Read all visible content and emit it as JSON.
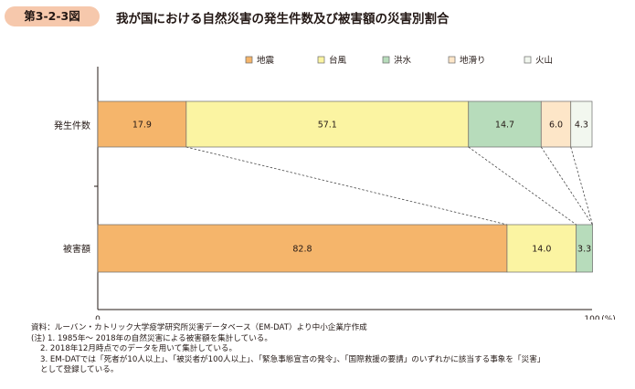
{
  "figure": {
    "number": "第3-2-3図",
    "title": "我が国における自然災害の発生件数及び被害額の災害別割合"
  },
  "chart_data": {
    "type": "bar",
    "orientation": "horizontal",
    "stacked": true,
    "categories": [
      "発生件数",
      "被害額"
    ],
    "series": [
      {
        "name": "地震",
        "color": "#f5b56b",
        "values": [
          17.9,
          82.8
        ],
        "labels": [
          "17.9",
          "82.8"
        ]
      },
      {
        "name": "台風",
        "color": "#fbf4a2",
        "values": [
          57.1,
          14.0
        ],
        "labels": [
          "57.1",
          "14.0"
        ]
      },
      {
        "name": "洪水",
        "color": "#b7dcbb",
        "values": [
          14.7,
          3.3
        ],
        "labels": [
          "14.7",
          "3.3"
        ]
      },
      {
        "name": "地滑り",
        "color": "#fde6c8",
        "values": [
          6.0,
          0.0
        ],
        "labels": [
          "6.0",
          ""
        ]
      },
      {
        "name": "火山",
        "color": "#f2f7ef",
        "values": [
          4.3,
          0.0
        ],
        "labels": [
          "4.3",
          ""
        ]
      }
    ],
    "xlim": [
      0,
      100
    ],
    "x_ticks": [
      "0",
      "100"
    ],
    "x_unit": "(%)",
    "legend_position": "top-right",
    "connector_lines": "dashed"
  },
  "notes": {
    "source": "資料：ルーバン・カトリック大学疫学研究所災害データベース（EM-DAT）より中小企業庁作成",
    "note1": "(注) 1. 1985年～ 2018年の自然災害による被害額を集計している。",
    "note2": "2. 2018年12月時点でのデータを用いて集計している。",
    "note3a": "3. EM-DATでは「死者が10人以上」、「被災者が100人以上」、「緊急事態宣言の発令」、「国際救援の要請」のいずれかに該当する事象を「災害」",
    "note3b": "として登録している。"
  }
}
